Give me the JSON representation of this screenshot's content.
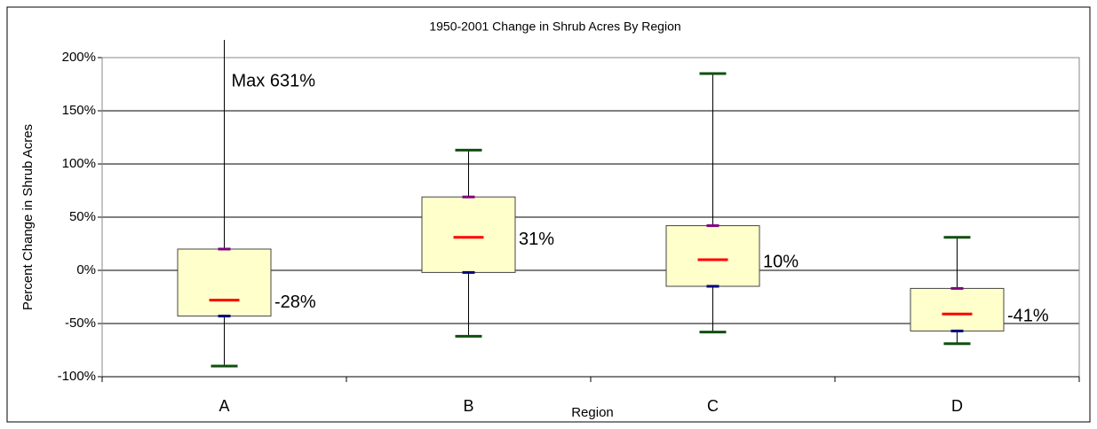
{
  "chart_data": {
    "type": "box",
    "title": "1950-2001 Change in Shrub Acres By Region",
    "x_label": "Region",
    "y_label": "Percent Change in Shrub Acres",
    "categories": [
      "A",
      "B",
      "C",
      "D"
    ],
    "min": [
      -90,
      -62,
      -58,
      -69
    ],
    "q1": [
      -43,
      -2,
      -15,
      -57
    ],
    "median": [
      -28,
      31,
      10,
      -41
    ],
    "q3": [
      20,
      69,
      42,
      -17
    ],
    "max": [
      631,
      113,
      185,
      31
    ],
    "value_labels": [
      "-28%",
      "31%",
      "10%",
      "-41%"
    ],
    "annotations": [
      {
        "text": "Max 631%",
        "category": 0
      }
    ],
    "ylim": [
      -100,
      200
    ],
    "yticks": [
      {
        "value": -100,
        "label": "-100%"
      },
      {
        "value": -50,
        "label": "-50%"
      },
      {
        "value": 0,
        "label": "0%"
      },
      {
        "value": 50,
        "label": "50%"
      },
      {
        "value": 100,
        "label": "100%"
      },
      {
        "value": 150,
        "label": "150%"
      },
      {
        "value": 200,
        "label": "200%"
      }
    ],
    "grid": true,
    "box_color": "#ffffcc",
    "median_color": "#ff0000",
    "whisker_color": "#0f4f0f"
  }
}
